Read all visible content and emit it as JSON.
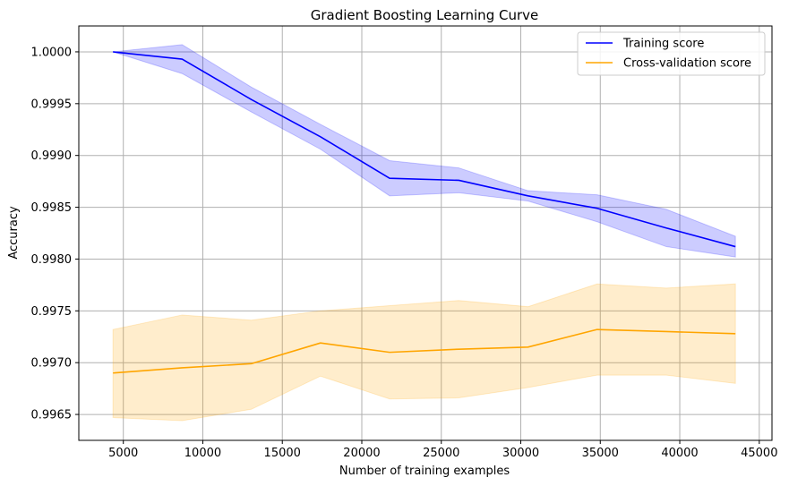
{
  "chart_data": {
    "type": "line",
    "title": "Gradient Boosting Learning Curve",
    "xlabel": "Number of training examples",
    "ylabel": "Accuracy",
    "xlim": [
      2200,
      45800
    ],
    "ylim": [
      0.99625,
      1.00025
    ],
    "grid": true,
    "legend_position": "top-right",
    "xticks": [
      5000,
      10000,
      15000,
      20000,
      25000,
      30000,
      35000,
      40000,
      45000
    ],
    "yticks": [
      0.9965,
      0.997,
      0.9975,
      0.998,
      0.9985,
      0.999,
      0.9995,
      1.0
    ],
    "xtick_labels": [
      "5000",
      "10000",
      "15000",
      "20000",
      "25000",
      "30000",
      "35000",
      "40000",
      "45000"
    ],
    "ytick_labels": [
      "0.9965",
      "0.9970",
      "0.9975",
      "0.9980",
      "0.9985",
      "0.9990",
      "0.9995",
      "1.0000"
    ],
    "x": [
      4350,
      8700,
      13050,
      17400,
      21750,
      26100,
      30450,
      34800,
      39150,
      43500
    ],
    "series": [
      {
        "name": "Training score",
        "color": "#0000ff",
        "fill_color": "#0000ff",
        "values": [
          1.0,
          0.99993,
          0.99954,
          0.99918,
          0.99878,
          0.99876,
          0.99861,
          0.99849,
          0.9983,
          0.99812
        ],
        "upper": [
          1.0,
          1.00007,
          0.99966,
          0.9993,
          0.99895,
          0.99888,
          0.99866,
          0.99862,
          0.99848,
          0.99822
        ],
        "lower": [
          1.0,
          0.99979,
          0.99942,
          0.99906,
          0.99861,
          0.99864,
          0.99856,
          0.99836,
          0.99812,
          0.99802
        ]
      },
      {
        "name": "Cross-validation score",
        "color": "#ffa500",
        "fill_color": "#ffa500",
        "values": [
          0.9969,
          0.99695,
          0.99699,
          0.99719,
          0.9971,
          0.99713,
          0.99715,
          0.99732,
          0.9973,
          0.99728
        ],
        "upper": [
          0.99732,
          0.99746,
          0.99741,
          0.9975,
          0.99755,
          0.9976,
          0.99754,
          0.99776,
          0.99772,
          0.99776
        ],
        "lower": [
          0.99647,
          0.99644,
          0.99655,
          0.99687,
          0.99665,
          0.99666,
          0.99676,
          0.99688,
          0.99688,
          0.9968
        ]
      }
    ]
  }
}
